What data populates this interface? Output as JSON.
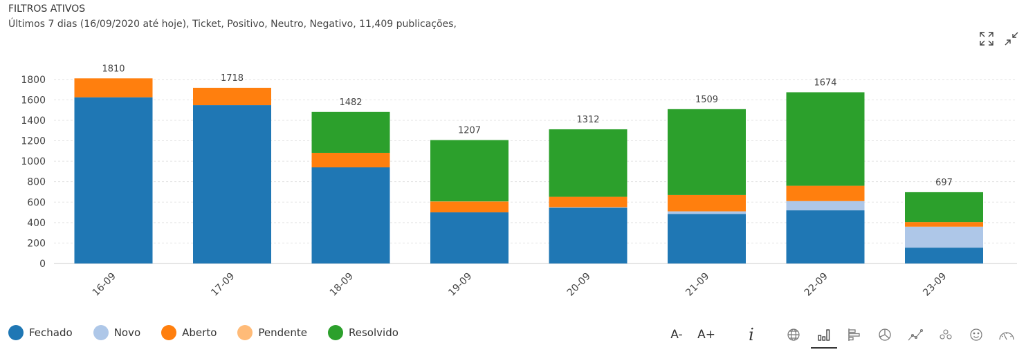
{
  "header": {
    "title": "FILTROS ATIVOS",
    "filters": "Últimos 7 dias (16/09/2020 até hoje), Ticket, Positivo, Neutro, Negativo, 11,409 publicações,"
  },
  "toolbar": {
    "font_decrease": "A-",
    "font_increase": "A+",
    "info_glyph": "i"
  },
  "colors": {
    "Fechado": "#1f77b4",
    "Novo": "#aec7e8",
    "Aberto": "#ff7f0e",
    "Pendente": "#ffbb78",
    "Resolvido": "#2ca02c",
    "grid": "#e3e3e3",
    "axis": "#555555"
  },
  "chart_data": {
    "type": "bar",
    "stacked": true,
    "categories": [
      "16-09",
      "17-09",
      "18-09",
      "19-09",
      "20-09",
      "21-09",
      "22-09",
      "23-09"
    ],
    "series": [
      {
        "name": "Fechado",
        "values": [
          1625,
          1548,
          940,
          500,
          545,
          485,
          520,
          155
        ]
      },
      {
        "name": "Novo",
        "values": [
          0,
          0,
          0,
          0,
          5,
          25,
          90,
          205
        ]
      },
      {
        "name": "Aberto",
        "values": [
          185,
          170,
          142,
          105,
          102,
          160,
          150,
          45
        ]
      },
      {
        "name": "Pendente",
        "values": [
          0,
          0,
          0,
          2,
          0,
          0,
          0,
          0
        ]
      },
      {
        "name": "Resolvido",
        "values": [
          0,
          0,
          400,
          600,
          660,
          839,
          914,
          292
        ]
      }
    ],
    "totals": [
      1810,
      1718,
      1482,
      1207,
      1312,
      1509,
      1674,
      697
    ],
    "y_ticks": [
      0,
      200,
      400,
      600,
      800,
      1000,
      1200,
      1400,
      1600,
      1800
    ],
    "ylim": [
      0,
      1900
    ],
    "grid": true,
    "legend_position": "bottom-left",
    "title": "",
    "xlabel": "",
    "ylabel": ""
  },
  "legend": [
    {
      "label": "Fechado",
      "color": "#1f77b4"
    },
    {
      "label": "Novo",
      "color": "#aec7e8"
    },
    {
      "label": "Aberto",
      "color": "#ff7f0e"
    },
    {
      "label": "Pendente",
      "color": "#ffbb78"
    },
    {
      "label": "Resolvido",
      "color": "#2ca02c"
    }
  ]
}
